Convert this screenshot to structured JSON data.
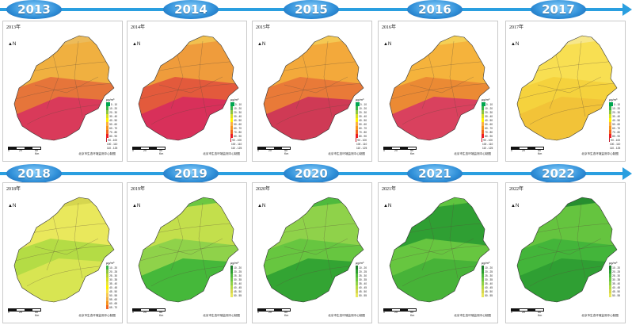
{
  "timeline_rows": [
    {
      "years": [
        {
          "year": "2013",
          "legend": "aq",
          "colors": [
            "#d93a5a",
            "#e6753a",
            "#f0b040",
            "#ecbb5a"
          ]
        },
        {
          "year": "2014",
          "legend": "aq",
          "colors": [
            "#d8305a",
            "#e35a3c",
            "#ef9c3c",
            "#f2c04f"
          ]
        },
        {
          "year": "2015",
          "legend": "aq",
          "colors": [
            "#cf3a55",
            "#e97a38",
            "#f3a93b",
            "#f4c853"
          ]
        },
        {
          "year": "2016",
          "legend": "aq",
          "colors": [
            "#d9415e",
            "#eb8a34",
            "#f5b33c",
            "#f5cf55"
          ]
        },
        {
          "year": "2017",
          "legend": "aq",
          "colors": [
            "#f2c338",
            "#f5d23d",
            "#f8df52",
            "#f7e78a"
          ]
        }
      ]
    },
    {
      "years": [
        {
          "year": "2018",
          "legend": "aq2",
          "colors": [
            "#d8e552",
            "#b4dc45",
            "#e9e85c",
            "#d6d64f"
          ]
        },
        {
          "year": "2019",
          "legend": "aq3",
          "colors": [
            "#45b83a",
            "#8fd24a",
            "#c3df4c",
            "#6cc742"
          ]
        },
        {
          "year": "2020",
          "legend": "aq3",
          "colors": [
            "#33a433",
            "#67c640",
            "#8fd24a",
            "#4fba3d"
          ]
        },
        {
          "year": "2021",
          "legend": "aq3",
          "colors": [
            "#47b338",
            "#67c640",
            "#2f9f33",
            "#5fc43f"
          ]
        },
        {
          "year": "2022",
          "legend": "aq3",
          "colors": [
            "#2f9f33",
            "#43b53a",
            "#65c43f",
            "#278e2f"
          ]
        }
      ]
    }
  ],
  "legends": {
    "aq": {
      "title": "μg/m³",
      "items": [
        {
          "label": "0 - 10",
          "color": "#00a651"
        },
        {
          "label": "10 - 20",
          "color": "#39b54a"
        },
        {
          "label": "20 - 30",
          "color": "#8dc63f"
        },
        {
          "label": "30 - 40",
          "color": "#d7df23"
        },
        {
          "label": "40 - 50",
          "color": "#fff200"
        },
        {
          "label": "50 - 60",
          "color": "#fbb040"
        },
        {
          "label": "60 - 70",
          "color": "#f7941d"
        },
        {
          "label": "70 - 80",
          "color": "#f26522"
        },
        {
          "label": "80 - 90",
          "color": "#ed1c24"
        },
        {
          "label": "90 - 100",
          "color": "#be1e2d"
        },
        {
          "label": "100 - 110",
          "color": "#9e1f63"
        },
        {
          "label": "110 - 125",
          "color": "#8b5e3c"
        }
      ]
    },
    "aq2": {
      "title": "μg/m³",
      "items": [
        {
          "label": "10 - 20",
          "color": "#39b54a"
        },
        {
          "label": "20 - 25",
          "color": "#8dc63f"
        },
        {
          "label": "25 - 30",
          "color": "#b6d433"
        },
        {
          "label": "30 - 35",
          "color": "#d7df23"
        },
        {
          "label": "35 - 40",
          "color": "#e8e33a"
        },
        {
          "label": "40 - 45",
          "color": "#fff200"
        },
        {
          "label": "45 - 50",
          "color": "#fde24a"
        },
        {
          "label": "50 - 55",
          "color": "#f6c85a"
        },
        {
          "label": "55 - 60",
          "color": "#f2b14a"
        },
        {
          "label": "60 - 65",
          "color": "#f7941d"
        },
        {
          "label": "65 - 70",
          "color": "#f26522"
        }
      ]
    },
    "aq3": {
      "title": "μg/m³",
      "items": [
        {
          "label": "10 - 20",
          "color": "#1e7d2b"
        },
        {
          "label": "20 - 25",
          "color": "#2f9f33"
        },
        {
          "label": "25 - 30",
          "color": "#4fba3d"
        },
        {
          "label": "30 - 35",
          "color": "#6cc742"
        },
        {
          "label": "35 - 40",
          "color": "#8fd24a"
        },
        {
          "label": "40 - 45",
          "color": "#b4dc45"
        },
        {
          "label": "45 - 50",
          "color": "#d6d64f"
        },
        {
          "label": "50 - 55",
          "color": "#e9e85c"
        }
      ]
    }
  },
  "panel_labels": {
    "2013": "2013年",
    "2014": "2014年",
    "2015": "2015年",
    "2016": "2016年",
    "2017": "2017年",
    "2018": "2018年",
    "2019": "2019年",
    "2020": "2020年",
    "2021": "2021年",
    "2022": "2022年"
  },
  "north_label": "N",
  "scale": {
    "a": "0",
    "b": "20",
    "c": "50 Km"
  },
  "credit": "北京市生态环境监测中心制图"
}
